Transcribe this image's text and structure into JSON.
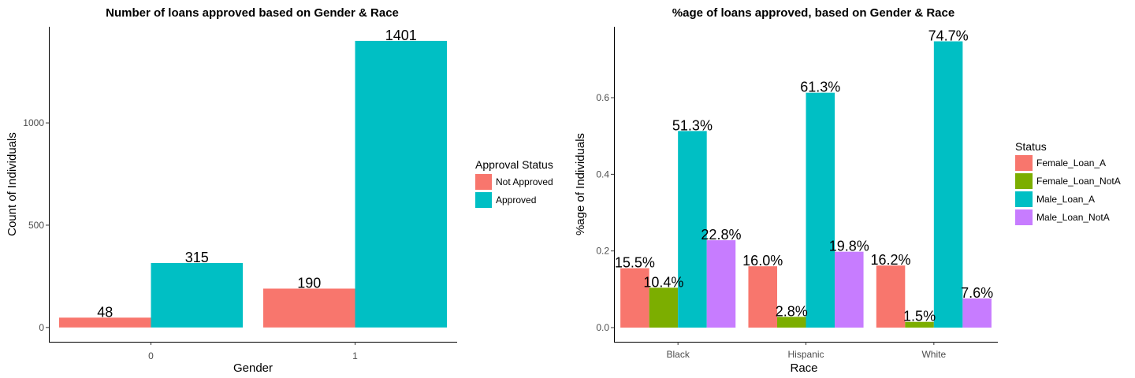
{
  "chart_data": [
    {
      "type": "bar",
      "title": "Number of loans approved based on Gender & Race",
      "xlabel": "Gender",
      "ylabel": "Count of Individuals",
      "categories": [
        "0",
        "1"
      ],
      "series": [
        {
          "name": "Not Approved",
          "color": "#F8766D",
          "values": [
            48,
            190
          ]
        },
        {
          "name": "Approved",
          "color": "#00BFC4",
          "values": [
            315,
            1401
          ]
        }
      ],
      "data_labels": [
        [
          "48",
          "190"
        ],
        [
          "315",
          "1401"
        ]
      ],
      "yticks": [
        0,
        500,
        1000
      ],
      "ytick_labels": [
        "0",
        "500",
        "1000"
      ],
      "ylim": [
        -70,
        1470
      ],
      "grid": false,
      "legend": {
        "title": "Approval Status",
        "position": "right"
      }
    },
    {
      "type": "bar",
      "title": "%age of loans approved, based on Gender & Race",
      "xlabel": "Race",
      "ylabel": "%age of Individuals",
      "categories": [
        "Black",
        "Hispanic",
        "White"
      ],
      "series": [
        {
          "name": "Female_Loan_A",
          "color": "#F8766D",
          "values": [
            0.155,
            0.16,
            0.162
          ]
        },
        {
          "name": "Female_Loan_NotA",
          "color": "#7CAE00",
          "values": [
            0.104,
            0.028,
            0.015
          ]
        },
        {
          "name": "Male_Loan_A",
          "color": "#00BFC4",
          "values": [
            0.513,
            0.613,
            0.747
          ]
        },
        {
          "name": "Male_Loan_NotA",
          "color": "#C77CFF",
          "values": [
            0.228,
            0.198,
            0.076
          ]
        }
      ],
      "data_labels": [
        [
          "15.5%",
          "16.0%",
          "16.2%"
        ],
        [
          "10.4%",
          "2.8%",
          "1.5%"
        ],
        [
          "51.3%",
          "61.3%",
          "74.7%"
        ],
        [
          "22.8%",
          "19.8%",
          "7.6%"
        ]
      ],
      "yticks": [
        0,
        0.2,
        0.4,
        0.6
      ],
      "ytick_labels": [
        "0.0",
        "0.2",
        "0.4",
        "0.6"
      ],
      "ylim": [
        -0.037,
        0.785
      ],
      "grid": false,
      "legend": {
        "title": "Status",
        "position": "right"
      }
    }
  ]
}
